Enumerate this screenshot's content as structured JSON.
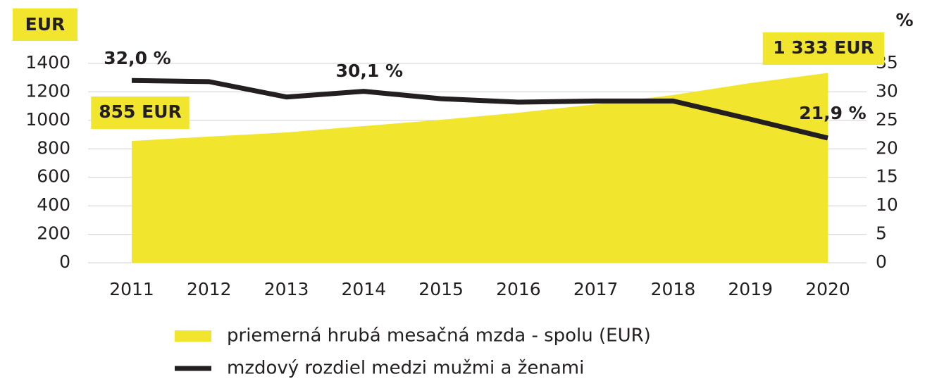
{
  "chart_data": {
    "type": "area-line",
    "categories": [
      "2011",
      "2012",
      "2013",
      "2014",
      "2015",
      "2016",
      "2017",
      "2018",
      "2019",
      "2020"
    ],
    "y_label": "EUR",
    "y2_label": "%",
    "series": [
      {
        "name": "priemerná hrubá mesačná mzda - spolu (EUR)",
        "type": "area",
        "color": "#f2e52e",
        "values": [
          855,
          886,
          915,
          960,
          1004,
          1054,
          1113,
          1178,
          1262,
          1333
        ],
        "value_labels": [
          "855 EUR",
          null,
          null,
          null,
          null,
          null,
          null,
          null,
          null,
          "1 333 EUR"
        ]
      },
      {
        "name": "mzdový rozdiel medzi mužmi a ženami",
        "type": "line",
        "color": "#231f20",
        "axis": "y2",
        "values": [
          32.0,
          31.8,
          29.1,
          30.1,
          28.8,
          28.2,
          28.4,
          28.4,
          25.2,
          21.9
        ],
        "value_labels": [
          "32,0 %",
          null,
          null,
          "30,1 %",
          null,
          null,
          null,
          null,
          null,
          "21,9 %"
        ]
      }
    ],
    "ylim": [
      0,
      1400
    ],
    "yticks": [
      0,
      200,
      400,
      600,
      800,
      1000,
      1200,
      1400
    ],
    "y2lim": [
      0,
      35
    ],
    "y2ticks": [
      0,
      5,
      10,
      15,
      20,
      25,
      30,
      35
    ],
    "grid": true
  }
}
